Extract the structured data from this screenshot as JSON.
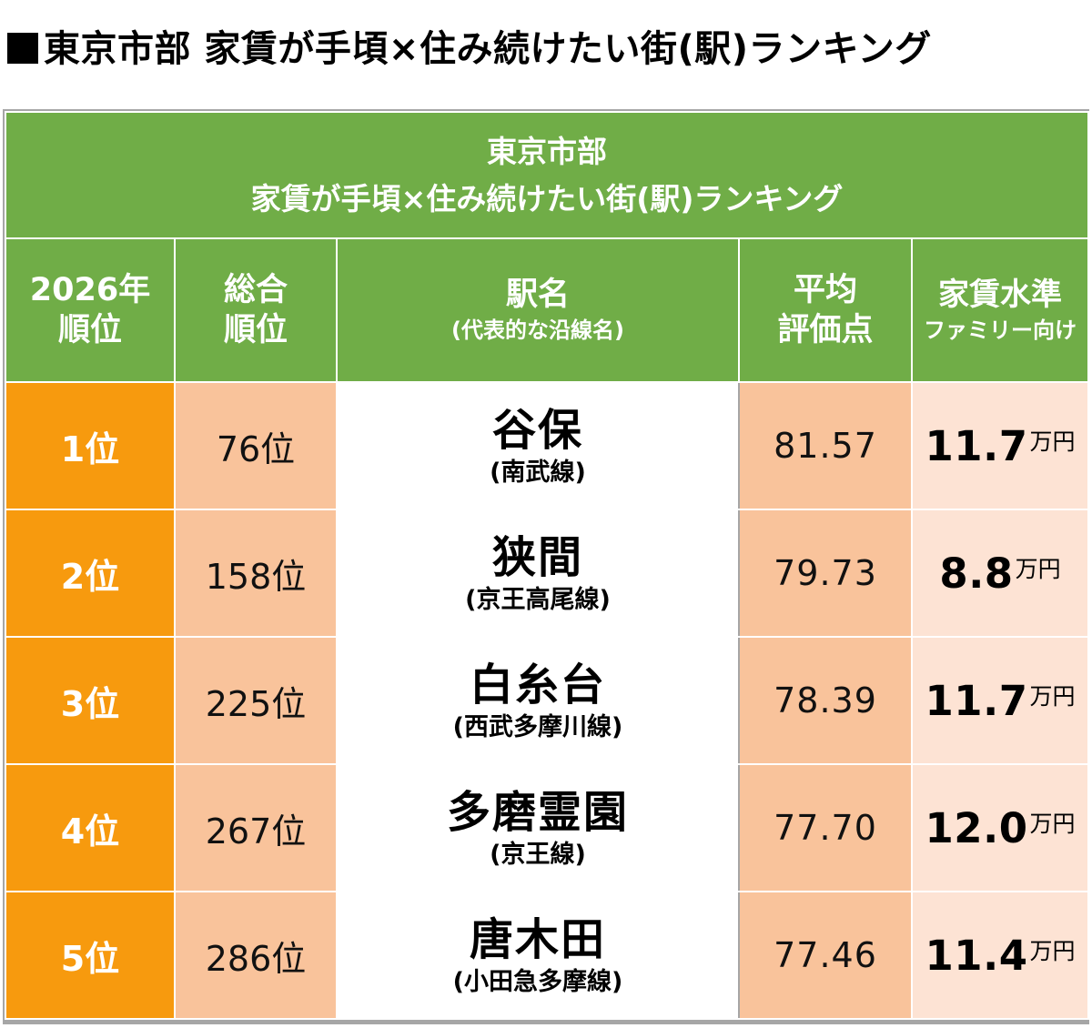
{
  "page_title": "東京市部 家賃が手頃×住み続けたい街(駅)ランキング",
  "table": {
    "banner_line1": "東京市部",
    "banner_line2": "家賃が手頃×住み続けたい街(駅)ランキング",
    "headers": {
      "rank_line1": "2026年",
      "rank_line2": "順位",
      "overall_line1": "総合",
      "overall_line2": "順位",
      "station_line1": "駅名",
      "station_line2": "(代表的な沿線名)",
      "score_line1": "平均",
      "score_line2": "評価点",
      "rent_line1": "家賃水準",
      "rent_line2": "ファミリー向け"
    },
    "rent_unit": "万円",
    "rows": [
      {
        "rank": "1位",
        "overall": "76位",
        "station": "谷保",
        "line": "(南武線)",
        "score": "81.57",
        "rent": "11.7"
      },
      {
        "rank": "2位",
        "overall": "158位",
        "station": "狭間",
        "line": "(京王高尾線)",
        "score": "79.73",
        "rent": "8.8"
      },
      {
        "rank": "3位",
        "overall": "225位",
        "station": "白糸台",
        "line": "(西武多摩川線)",
        "score": "78.39",
        "rent": "11.7"
      },
      {
        "rank": "4位",
        "overall": "267位",
        "station": "多磨霊園",
        "line": "(京王線)",
        "score": "77.70",
        "rent": "12.0"
      },
      {
        "rank": "5位",
        "overall": "286位",
        "station": "唐木田",
        "line": "(小田急多摩線)",
        "score": "77.46",
        "rent": "11.4"
      }
    ]
  },
  "colors": {
    "header_green": "#70ad47",
    "rank_orange": "#f79a0e",
    "light_orange": "#f9c39b",
    "pale_orange": "#fde3d4"
  }
}
